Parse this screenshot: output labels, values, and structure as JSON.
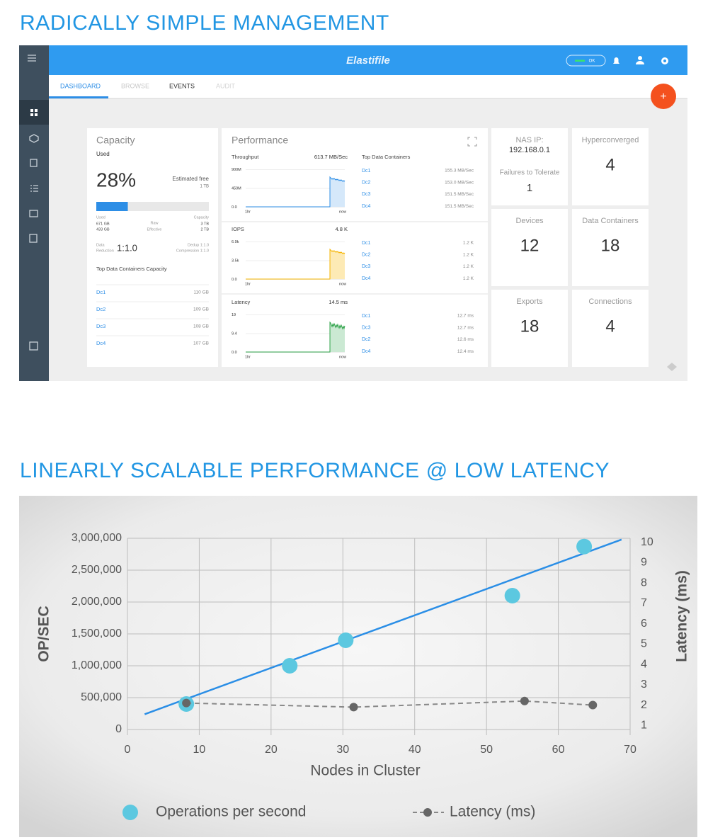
{
  "headings": [
    "RADICALLY SIMPLE MANAGEMENT",
    "LINEARLY SCALABLE PERFORMANCE @ LOW LATENCY"
  ],
  "dashboard": {
    "logo": "Elastifile",
    "status": "OK",
    "tabs": [
      "DASHBOARD",
      "BROWSE",
      "EVENTS",
      "AUDIT"
    ],
    "fab": "+",
    "capacity": {
      "title": "Capacity",
      "subtitle": "Used",
      "used": "28%",
      "free_label": "Estimated free",
      "free": "1 TB",
      "breakdown": {
        "used": "Used",
        "raw": "Raw",
        "capacity": "Capacity",
        "used_raw": "671 GB",
        "capacity_raw": "3 TB",
        "used_effective": "433 GB",
        "effective": "Effective",
        "capacity_effective": "2 TB"
      },
      "reduction_label": [
        "Data",
        "Reduction"
      ],
      "reduction": "1:1.0",
      "dedup": "Dedup 1:1.0",
      "compression": "Compression 1:1.0",
      "top_title": "Top Data Containers Capacity",
      "top": [
        {
          "name": "Dc1",
          "value": "110 GB"
        },
        {
          "name": "Dc2",
          "value": "109 GB"
        },
        {
          "name": "Dc3",
          "value": "108 GB"
        },
        {
          "name": "Dc4",
          "value": "107 GB"
        }
      ]
    },
    "performance": {
      "title": "Performance",
      "top_title": "Top Data Containers",
      "metrics": [
        {
          "label": "Throughput",
          "value": "613.7 MB/Sec",
          "yticks": [
            "900M",
            "450M",
            "0.0"
          ],
          "xticks": [
            "1hr",
            "now"
          ],
          "top": [
            {
              "name": "Dc1",
              "value": "155.3 MB/Sec"
            },
            {
              "name": "Dc2",
              "value": "153.0 MB/Sec"
            },
            {
              "name": "Dc3",
              "value": "151.5 MB/Sec"
            },
            {
              "name": "Dc4",
              "value": "151.5 MB/Sec"
            }
          ]
        },
        {
          "label": "IOPS",
          "value": "4.8 K",
          "yticks": [
            "6.9k",
            "3.5k",
            "0.0"
          ],
          "xticks": [
            "1hr",
            "now"
          ],
          "top": [
            {
              "name": "Dc1",
              "value": "1.2 K"
            },
            {
              "name": "Dc2",
              "value": "1.2 K"
            },
            {
              "name": "Dc3",
              "value": "1.2 K"
            },
            {
              "name": "Dc4",
              "value": "1.2 K"
            }
          ]
        },
        {
          "label": "Latency",
          "value": "14.5 ms",
          "yticks": [
            "19",
            "9.4",
            "0.0"
          ],
          "xticks": [
            "1hr",
            "now"
          ],
          "top": [
            {
              "name": "Dc1",
              "value": "12.7 ms"
            },
            {
              "name": "Dc3",
              "value": "12.7 ms"
            },
            {
              "name": "Dc2",
              "value": "12.6 ms"
            },
            {
              "name": "Dc4",
              "value": "12.4 ms"
            }
          ]
        }
      ]
    },
    "nas": {
      "label": "NAS IP:",
      "value": "192.168.0.1",
      "failures_label": "Failures to Tolerate",
      "failures": 1
    },
    "tiles": [
      {
        "label": "Hyperconverged",
        "value": 4
      },
      {
        "label": "Devices",
        "value": 12
      },
      {
        "label": "Data Containers",
        "value": 18
      },
      {
        "label": "Exports",
        "value": 18
      },
      {
        "label": "Connections",
        "value": 4
      }
    ]
  },
  "chart_data": {
    "type": "scatter",
    "x_label": "Nodes in Cluster",
    "y_label": "OP/SEC",
    "y2_label": "Latency (ms)",
    "xlim": [
      0,
      70
    ],
    "xticks": [
      0,
      10,
      20,
      30,
      40,
      50,
      60,
      70
    ],
    "ylim": [
      0,
      3000000
    ],
    "yticks": [
      0,
      {
        "value": 500000,
        "label": "500,000"
      },
      {
        "value": 1000000,
        "label": "1,000,000"
      },
      {
        "value": 1500000,
        "label": "1,500,000"
      },
      {
        "value": 2000000,
        "label": "2,000,000"
      },
      {
        "value": 2500000,
        "label": "2,500,000"
      },
      {
        "value": 3000000,
        "label": "3,000,000"
      }
    ],
    "y2lim": [
      0.8,
      10.2
    ],
    "y2ticks": [
      1,
      2,
      3,
      4,
      5,
      6,
      7,
      8,
      9,
      10
    ],
    "grid": true,
    "legend": "bottom",
    "series": [
      {
        "name": "Operations per second",
        "color": "#5cc8e0",
        "x": [
          8.2,
          22.6,
          30.4,
          53.6,
          63.6
        ],
        "values": [
          400000,
          1000000,
          1400000,
          2100000,
          2870000
        ]
      },
      {
        "name": "Latency (ms)",
        "color": "#666666",
        "axis": "y2",
        "line": "dashed",
        "x": [
          8.2,
          31.5,
          55.3,
          64.8
        ],
        "values": [
          2.1,
          1.9,
          2.2,
          2.0
        ]
      }
    ],
    "trendline": {
      "color": "#2a8ee6",
      "x": [
        2.4,
        68.8
      ],
      "values": [
        240000,
        2980000
      ]
    }
  }
}
